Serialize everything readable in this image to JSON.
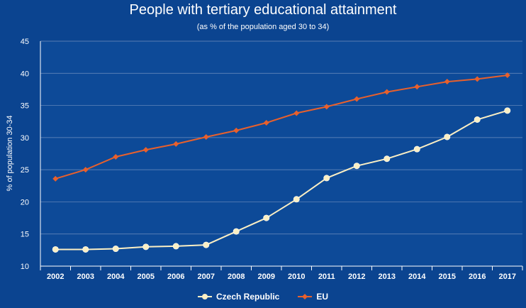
{
  "chart_data": {
    "type": "line",
    "title": "People with tertiary educational attainment",
    "subtitle": "(as % of the population aged 30 to 34)",
    "xlabel": "",
    "ylabel": "% of population 30-34",
    "ylim": [
      10,
      45
    ],
    "yticks": [
      10,
      15,
      20,
      25,
      30,
      35,
      40,
      45
    ],
    "grid": true,
    "legend_position": "bottom",
    "categories": [
      "2002",
      "2003",
      "2004",
      "2005",
      "2006",
      "2007",
      "2008",
      "2009",
      "2010",
      "2011",
      "2012",
      "2013",
      "2014",
      "2015",
      "2016",
      "2017"
    ],
    "series": [
      {
        "name": "Czech Republic",
        "color": "#fbefc4",
        "marker": "circle",
        "values": [
          12.6,
          12.6,
          12.7,
          13.0,
          13.1,
          13.3,
          15.4,
          17.5,
          20.4,
          23.7,
          25.6,
          26.7,
          28.2,
          30.1,
          32.8,
          34.2
        ]
      },
      {
        "name": "EU",
        "color": "#e8602c",
        "marker": "diamond",
        "values": [
          23.6,
          25.0,
          27.0,
          28.1,
          29.0,
          30.1,
          31.1,
          32.3,
          33.8,
          34.8,
          36.0,
          37.1,
          37.9,
          38.7,
          39.1,
          39.7
        ]
      }
    ]
  }
}
